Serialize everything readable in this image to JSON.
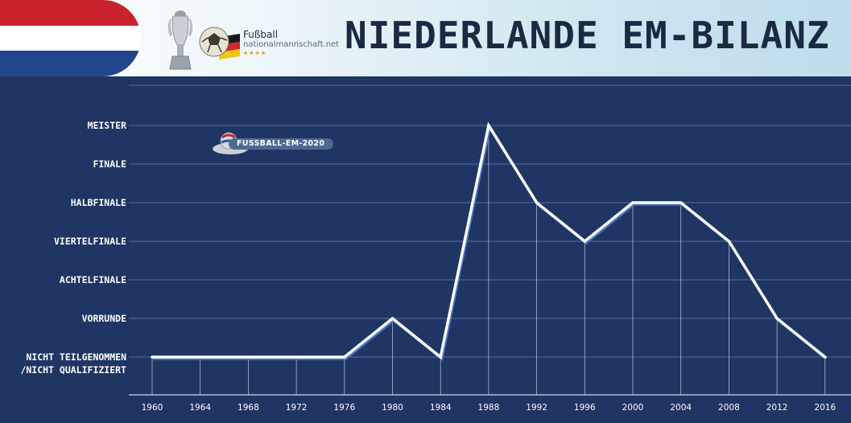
{
  "header": {
    "title": "Niederlande EM-Bilanz",
    "brand_line1": "Fußball",
    "brand_line2": "nationalmannschaft.net",
    "brand_stars": "★★★★",
    "flag_colors": [
      "#c8232c",
      "#ffffff",
      "#21468b"
    ]
  },
  "watermark": {
    "text": "FUSSBALL-EM-2020"
  },
  "colors": {
    "background": "#1f3563",
    "line": "#ffffff",
    "line_shadow": "#4a72c0",
    "grid": "#5a6f98"
  },
  "chart_data": {
    "type": "line",
    "title": "",
    "xlabel": "",
    "ylabel": "",
    "grid": true,
    "categories_y": [
      "Nicht teilgenommen /nicht qualifiziert",
      "Vorrunde",
      "Achtelfinale",
      "Viertelfinale",
      "Halbfinale",
      "Finale",
      "Meister"
    ],
    "y_tick_lines": [
      [
        "NICHT TEILGENOMMEN",
        "/NICHT QUALIFIZIERT"
      ],
      [
        "VORRUNDE"
      ],
      [
        "ACHTELFINALE"
      ],
      [
        "VIERTELFINALE"
      ],
      [
        "HALBFINALE"
      ],
      [
        "FINALE"
      ],
      [
        "MEISTER"
      ]
    ],
    "x": [
      "1960",
      "1964",
      "1968",
      "1972",
      "1976",
      "1980",
      "1984",
      "1988",
      "1992",
      "1996",
      "2000",
      "2004",
      "2008",
      "2012",
      "2016"
    ],
    "series": [
      {
        "values": [
          0,
          0,
          0,
          0,
          0,
          1,
          0,
          6,
          4,
          3,
          4,
          4,
          3,
          1,
          0
        ]
      }
    ],
    "ylim": [
      0,
      6
    ]
  }
}
